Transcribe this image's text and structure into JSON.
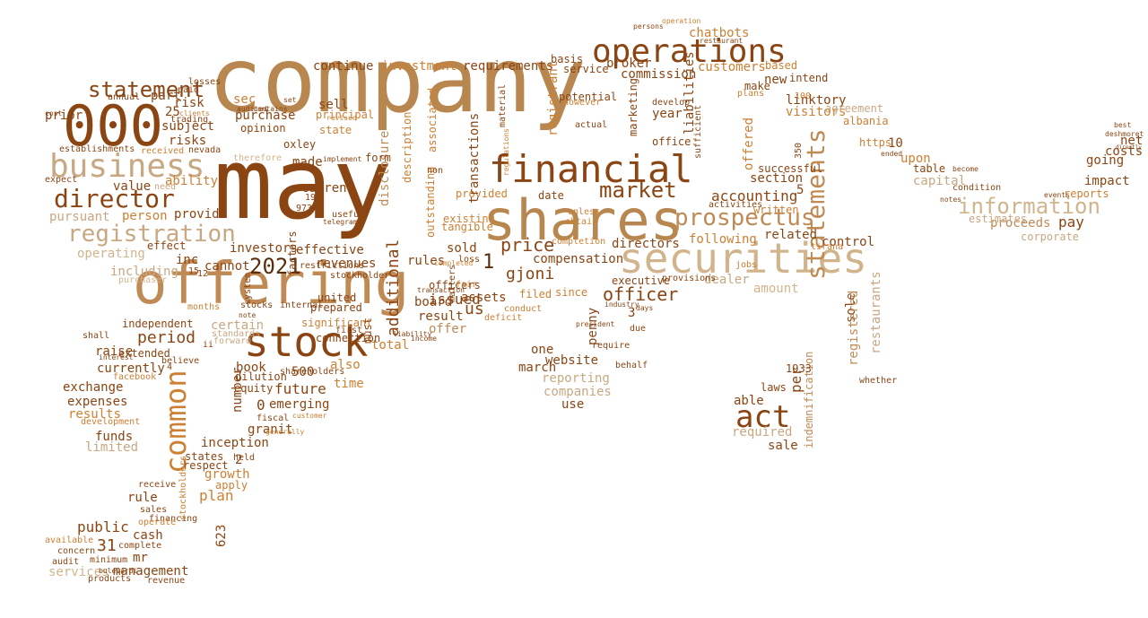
{
  "words": [
    {
      "text": "company",
      "color": "#b8864f"
    },
    {
      "text": "may",
      "color": "#8b4513"
    },
    {
      "text": "offering",
      "color": "#c08a55"
    },
    {
      "text": "shares",
      "color": "#b8864f"
    },
    {
      "text": "securities",
      "color": "#d2b48c"
    },
    {
      "text": "000",
      "color": "#8b4513"
    },
    {
      "text": "stock",
      "color": "#8b4513"
    },
    {
      "text": "business",
      "color": "#c8a882"
    },
    {
      "text": "financial",
      "color": "#8b4513"
    },
    {
      "text": "operations",
      "color": "#8b4513"
    },
    {
      "text": "prospectus",
      "color": "#c08a55"
    },
    {
      "text": "information",
      "color": "#d2b48c"
    },
    {
      "text": "registration",
      "color": "#c8a882"
    },
    {
      "text": "director",
      "color": "#8b4513"
    },
    {
      "text": "statement",
      "color": "#8b4513"
    },
    {
      "text": "market",
      "color": "#8b4513"
    },
    {
      "text": "act",
      "color": "#8b4513"
    },
    {
      "text": "statements",
      "color": "#c08a55"
    },
    {
      "text": "common",
      "color": "#cd7f32"
    },
    {
      "text": "2021",
      "color": "#5a2d0c"
    },
    {
      "text": "period",
      "color": "#8b4513"
    },
    {
      "text": "future",
      "color": "#8b4513"
    },
    {
      "text": "price",
      "color": "#8b4513"
    },
    {
      "text": "gjoni",
      "color": "#8b4513"
    },
    {
      "text": "officer",
      "color": "#8b4513"
    },
    {
      "text": "accounting",
      "color": "#8b4513"
    },
    {
      "text": "chatbots",
      "color": "#cd7f32"
    },
    {
      "text": "broker",
      "color": "#8b4513"
    },
    {
      "text": "commission",
      "color": "#8b4513"
    },
    {
      "text": "customers",
      "color": "#cd7f32"
    },
    {
      "text": "linktory",
      "color": "#8b4513"
    },
    {
      "text": "related",
      "color": "#8b4513"
    },
    {
      "text": "section",
      "color": "#8b4513"
    },
    {
      "text": "following",
      "color": "#cd7f32"
    },
    {
      "text": "capital",
      "color": "#c8a882"
    },
    {
      "text": "going",
      "color": "#8b4513"
    },
    {
      "text": "impact",
      "color": "#8b4513"
    },
    {
      "text": "pay",
      "color": "#8b4513"
    },
    {
      "text": "proceeds",
      "color": "#c08a55"
    },
    {
      "text": "net",
      "color": "#8b4513"
    },
    {
      "text": "costs",
      "color": "#8b4513"
    },
    {
      "text": "upon",
      "color": "#cd7f32"
    },
    {
      "text": "control",
      "color": "#8b4513"
    },
    {
      "text": "amount",
      "color": "#d2b48c"
    },
    {
      "text": "dealer",
      "color": "#c8a882"
    },
    {
      "text": "required",
      "color": "#c8a882"
    },
    {
      "text": "sale",
      "color": "#8b4513"
    },
    {
      "text": "able",
      "color": "#8b4513"
    },
    {
      "text": "per",
      "color": "#8b4513"
    },
    {
      "text": "directors",
      "color": "#8b4513"
    },
    {
      "text": "compensation",
      "color": "#8b4513"
    },
    {
      "text": "completion",
      "color": "#cd7f32"
    },
    {
      "text": "executive",
      "color": "#8b4513"
    },
    {
      "text": "penny",
      "color": "#8b4513"
    },
    {
      "text": "website",
      "color": "#8b4513"
    },
    {
      "text": "reporting",
      "color": "#c8a882"
    },
    {
      "text": "companies",
      "color": "#c8a882"
    },
    {
      "text": "march",
      "color": "#8b4513"
    },
    {
      "text": "one",
      "color": "#8b4513"
    },
    {
      "text": "use",
      "color": "#8b4513"
    },
    {
      "text": "offer",
      "color": "#c08a55"
    },
    {
      "text": "result",
      "color": "#8b4513"
    },
    {
      "text": "total",
      "color": "#cd7f32"
    },
    {
      "text": "board",
      "color": "#8b4513"
    },
    {
      "text": "assets",
      "color": "#8b4513"
    },
    {
      "text": "issued",
      "color": "#8b4513"
    },
    {
      "text": "us",
      "color": "#8b4513"
    },
    {
      "text": "rules",
      "color": "#8b4513"
    },
    {
      "text": "sold",
      "color": "#8b4513"
    },
    {
      "text": "provided",
      "color": "#cd7f32"
    },
    {
      "text": "date",
      "color": "#8b4513"
    },
    {
      "text": "additional",
      "color": "#8b4513"
    },
    {
      "text": "disclosure",
      "color": "#c08a55"
    },
    {
      "text": "revenues",
      "color": "#8b4513"
    },
    {
      "text": "effective",
      "color": "#8b4513"
    },
    {
      "text": "investors",
      "color": "#8b4513"
    },
    {
      "text": "inc",
      "color": "#8b4513"
    },
    {
      "text": "cannot",
      "color": "#8b4513"
    },
    {
      "text": "sell",
      "color": "#8b4513"
    },
    {
      "text": "sec",
      "color": "#cd7f32"
    },
    {
      "text": "purchase",
      "color": "#8b4513"
    },
    {
      "text": "part",
      "color": "#8b4513"
    },
    {
      "text": "risk",
      "color": "#8b4513"
    },
    {
      "text": "subject",
      "color": "#8b4513"
    },
    {
      "text": "risks",
      "color": "#8b4513"
    },
    {
      "text": "ability",
      "color": "#cd7f32"
    },
    {
      "text": "value",
      "color": "#8b4513"
    },
    {
      "text": "pursuant",
      "color": "#c8a882"
    },
    {
      "text": "person",
      "color": "#cd7f32"
    },
    {
      "text": "provide",
      "color": "#8b4513"
    },
    {
      "text": "operating",
      "color": "#d2b48c"
    },
    {
      "text": "including",
      "color": "#c8a882"
    },
    {
      "text": "certain",
      "color": "#c8a882"
    },
    {
      "text": "currently",
      "color": "#8b4513"
    },
    {
      "text": "raise",
      "color": "#8b4513"
    },
    {
      "text": "exchange",
      "color": "#8b4513"
    },
    {
      "text": "expenses",
      "color": "#8b4513"
    },
    {
      "text": "results",
      "color": "#cd7f32"
    },
    {
      "text": "funds",
      "color": "#8b4513"
    },
    {
      "text": "limited",
      "color": "#c8a882"
    },
    {
      "text": "inception",
      "color": "#8b4513"
    },
    {
      "text": "growth",
      "color": "#cd7f32"
    },
    {
      "text": "plan",
      "color": "#cd7f32"
    },
    {
      "text": "rule",
      "color": "#8b4513"
    },
    {
      "text": "cash",
      "color": "#8b4513"
    },
    {
      "text": "public",
      "color": "#8b4513"
    },
    {
      "text": "31",
      "color": "#8b4513"
    },
    {
      "text": "mr",
      "color": "#8b4513"
    },
    {
      "text": "services",
      "color": "#d2b48c"
    },
    {
      "text": "management",
      "color": "#8b4513"
    },
    {
      "text": "book",
      "color": "#8b4513"
    },
    {
      "text": "500",
      "color": "#8b4513"
    },
    {
      "text": "time",
      "color": "#cd7f32"
    },
    {
      "text": "also",
      "color": "#cd7f32"
    },
    {
      "text": "emerging",
      "color": "#8b4513"
    },
    {
      "text": "made",
      "color": "#8b4513"
    },
    {
      "text": "current",
      "color": "#8b4513"
    },
    {
      "text": "continue",
      "color": "#8b4513"
    },
    {
      "text": "investment",
      "color": "#cd7f32"
    },
    {
      "text": "requirements",
      "color": "#8b4513"
    },
    {
      "text": "year",
      "color": "#8b4513"
    },
    {
      "text": "new",
      "color": "#8b4513"
    },
    {
      "text": "marketing",
      "color": "#8b4513"
    },
    {
      "text": "liabilities",
      "color": "#8b4513"
    },
    {
      "text": "registrant",
      "color": "#cd7f32"
    },
    {
      "text": "transactions",
      "color": "#8b4513"
    },
    {
      "text": "associated",
      "color": "#cd7f32"
    },
    {
      "text": "outstanding",
      "color": "#cd7f32"
    },
    {
      "text": "must",
      "color": "#8b4513"
    },
    {
      "text": "factors",
      "color": "#8b4513"
    },
    {
      "text": "granit",
      "color": "#8b4513"
    },
    {
      "text": "number",
      "color": "#8b4513"
    },
    {
      "text": "sole",
      "color": "#8b4513"
    },
    {
      "text": "registered",
      "color": "#c08a55"
    },
    {
      "text": "restaurants",
      "color": "#c8a882"
    },
    {
      "text": "offered",
      "color": "#cd7f32"
    },
    {
      "text": "visitors",
      "color": "#cd7f32"
    },
    {
      "text": "based",
      "color": "#cd7f32"
    },
    {
      "text": "make",
      "color": "#8b4513"
    },
    {
      "text": "intend",
      "color": "#8b4513"
    },
    {
      "text": "agreement",
      "color": "#c8a882"
    },
    {
      "text": "albania",
      "color": "#cd7f32"
    },
    {
      "text": "indemnification",
      "color": "#c08a55"
    },
    {
      "text": "successful",
      "color": "#8b4513"
    },
    {
      "text": "written",
      "color": "#cd7f32"
    },
    {
      "text": "laws",
      "color": "#8b4513"
    },
    {
      "text": "1933",
      "color": "#8b4513"
    },
    {
      "text": "table",
      "color": "#8b4513"
    },
    {
      "text": "reports",
      "color": "#cd7f32"
    },
    {
      "text": "estimates",
      "color": "#c8a882"
    },
    {
      "text": "corporate",
      "color": "#c8a882"
    },
    {
      "text": "https",
      "color": "#cd7f32"
    },
    {
      "text": "10",
      "color": "#8b4513"
    },
    {
      "text": "25",
      "color": "#8b4513"
    },
    {
      "text": "2",
      "color": "#8b4513"
    },
    {
      "text": "5",
      "color": "#8b4513"
    },
    {
      "text": "0",
      "color": "#8b4513"
    },
    {
      "text": "1",
      "color": "#5a2d0c"
    },
    {
      "text": "3",
      "color": "#8b4513"
    },
    {
      "text": "623",
      "color": "#8b4513"
    },
    {
      "text": "prior",
      "color": "#8b4513"
    },
    {
      "text": "filed",
      "color": "#cd7f32"
    },
    {
      "text": "since",
      "color": "#cd7f32"
    },
    {
      "text": "existing",
      "color": "#cd7f32"
    },
    {
      "text": "tangible",
      "color": "#cd7f32"
    },
    {
      "text": "form",
      "color": "#8b4513"
    },
    {
      "text": "description",
      "color": "#cd7f32"
    },
    {
      "text": "state",
      "color": "#cd7f32"
    },
    {
      "text": "principal",
      "color": "#cd7f32"
    },
    {
      "text": "opinion",
      "color": "#8b4513"
    },
    {
      "text": "oxley",
      "color": "#8b4513"
    },
    {
      "text": "office",
      "color": "#8b4513"
    },
    {
      "text": "potential",
      "color": "#8b4513"
    },
    {
      "text": "basis",
      "color": "#8b4513"
    },
    {
      "text": "service",
      "color": "#8b4513"
    },
    {
      "text": "restaurant",
      "color": "#8b4513"
    },
    {
      "text": "united",
      "color": "#8b4513"
    },
    {
      "text": "prepared",
      "color": "#8b4513"
    },
    {
      "text": "significant",
      "color": "#cd7f32"
    },
    {
      "text": "connection",
      "color": "#8b4513"
    },
    {
      "text": "shareholders",
      "color": "#8b4513"
    },
    {
      "text": "held",
      "color": "#8b4513"
    },
    {
      "text": "respect",
      "color": "#8b4513"
    },
    {
      "text": "states",
      "color": "#8b4513"
    },
    {
      "text": "apply",
      "color": "#cd7f32"
    },
    {
      "text": "receive",
      "color": "#8b4513"
    },
    {
      "text": "sales",
      "color": "#8b4513"
    },
    {
      "text": "financing",
      "color": "#8b4513"
    },
    {
      "text": "stockholders",
      "color": "#cd7f32"
    },
    {
      "text": "operate",
      "color": "#cd7f32"
    },
    {
      "text": "complete",
      "color": "#8b4513"
    },
    {
      "text": "minimum",
      "color": "#8b4513"
    },
    {
      "text": "concern",
      "color": "#8b4513"
    },
    {
      "text": "available",
      "color": "#cd7f32"
    },
    {
      "text": "audit",
      "color": "#8b4513"
    },
    {
      "text": "products",
      "color": "#8b4513"
    },
    {
      "text": "revenue",
      "color": "#8b4513"
    },
    {
      "text": "development",
      "color": "#cd7f32"
    },
    {
      "text": "extended",
      "color": "#8b4513"
    },
    {
      "text": "believe",
      "color": "#8b4513"
    },
    {
      "text": "independent",
      "color": "#8b4513"
    },
    {
      "text": "shall",
      "color": "#8b4513"
    },
    {
      "text": "facebook",
      "color": "#cd7f32"
    },
    {
      "text": "months",
      "color": "#cd7f32"
    },
    {
      "text": "standards",
      "color": "#c8a882"
    },
    {
      "text": "stocks",
      "color": "#8b4513"
    },
    {
      "text": "internal",
      "color": "#8b4513"
    },
    {
      "text": "stockholder",
      "color": "#8b4513"
    },
    {
      "text": "restrictions",
      "color": "#8b4513"
    },
    {
      "text": "dilution",
      "color": "#8b4513"
    },
    {
      "text": "equity",
      "color": "#8b4513"
    },
    {
      "text": "system",
      "color": "#8b4513"
    },
    {
      "text": "establishments",
      "color": "#8b4513"
    },
    {
      "text": "trading",
      "color": "#8b4513"
    },
    {
      "text": "nevada",
      "color": "#8b4513"
    },
    {
      "text": "clients",
      "color": "#cd7f32"
    },
    {
      "text": "paid",
      "color": "#8b4513"
    },
    {
      "text": "losses",
      "color": "#8b4513"
    },
    {
      "text": "conduct",
      "color": "#cd7f32"
    },
    {
      "text": "officers",
      "color": "#8b4513"
    },
    {
      "text": "require",
      "color": "#8b4513"
    },
    {
      "text": "behalf",
      "color": "#8b4513"
    },
    {
      "text": "due",
      "color": "#8b4513"
    },
    {
      "text": "days",
      "color": "#8b4513"
    },
    {
      "text": "whether",
      "color": "#8b4513"
    },
    {
      "text": "ended",
      "color": "#8b4513"
    },
    {
      "text": "tirana",
      "color": "#cd7f32"
    },
    {
      "text": "jobs",
      "color": "#cd7f32"
    },
    {
      "text": "activities",
      "color": "#8b4513"
    },
    {
      "text": "sufficient",
      "color": "#8b4513"
    },
    {
      "text": "loss",
      "color": "#8b4513"
    },
    {
      "text": "fair",
      "color": "#cd7f32"
    },
    {
      "text": "material",
      "color": "#8b4513"
    },
    {
      "text": "regulations",
      "color": "#cd7f32"
    },
    {
      "text": "therefore",
      "color": "#d2b48c"
    },
    {
      "text": "received",
      "color": "#cd7f32"
    },
    {
      "text": "annual",
      "color": "#8b4513"
    },
    {
      "text": "bulevardi",
      "color": "#8b4513"
    },
    {
      "text": "expect",
      "color": "#8b4513"
    },
    {
      "text": "cost",
      "color": "#8b4513"
    },
    {
      "text": "liability",
      "color": "#8b4513"
    },
    {
      "text": "income",
      "color": "#8b4513"
    },
    {
      "text": "first",
      "color": "#8b4513"
    },
    {
      "text": "telegram",
      "color": "#8b4513"
    },
    {
      "text": "useful",
      "color": "#8b4513"
    },
    {
      "text": "implement",
      "color": "#8b4513"
    },
    {
      "text": "973",
      "color": "#8b4513"
    },
    {
      "text": "19",
      "color": "#8b4513"
    },
    {
      "text": "350",
      "color": "#8b4513"
    },
    {
      "text": "100",
      "color": "#cd7f32"
    },
    {
      "text": "12",
      "color": "#8b4513"
    },
    {
      "text": "15",
      "color": "#8b4513"
    },
    {
      "text": "4",
      "color": "#8b4513"
    },
    {
      "text": "ii",
      "color": "#8b4513"
    },
    {
      "text": "note",
      "color": "#8b4513"
    },
    {
      "text": "audited",
      "color": "#8b4513"
    },
    {
      "text": "contains",
      "color": "#8b4513"
    },
    {
      "text": "set",
      "color": "#8b4513"
    },
    {
      "text": "revised",
      "color": "#cd7f32"
    },
    {
      "text": "non",
      "color": "#8b4513"
    },
    {
      "text": "matters",
      "color": "#8b4513"
    },
    {
      "text": "deficit",
      "color": "#cd7f32"
    },
    {
      "text": "unless",
      "color": "#cd7f32"
    },
    {
      "text": "obtain",
      "color": "#cd7f32"
    },
    {
      "text": "actual",
      "color": "#8b4513"
    },
    {
      "text": "however",
      "color": "#cd7f32"
    },
    {
      "text": "develop",
      "color": "#8b4513"
    },
    {
      "text": "plans",
      "color": "#cd7f32"
    },
    {
      "text": "persons",
      "color": "#8b4513"
    },
    {
      "text": "operation",
      "color": "#cd7f32"
    },
    {
      "text": "best",
      "color": "#8b4513"
    },
    {
      "text": "deshmoret",
      "color": "#8b4513"
    },
    {
      "text": "directly",
      "color": "#8b4513"
    },
    {
      "text": "events",
      "color": "#8b4513"
    },
    {
      "text": "condition",
      "color": "#8b4513"
    },
    {
      "text": "become",
      "color": "#8b4513"
    },
    {
      "text": "notes",
      "color": "#8b4513"
    },
    {
      "text": "provisions",
      "color": "#8b4513"
    },
    {
      "text": "industry",
      "color": "#8b4513"
    },
    {
      "text": "president",
      "color": "#8b4513"
    },
    {
      "text": "customer",
      "color": "#cd7f32"
    },
    {
      "text": "fiscal",
      "color": "#8b4513"
    },
    {
      "text": "generally",
      "color": "#cd7f32"
    },
    {
      "text": "interest",
      "color": "#8b4513"
    },
    {
      "text": "forward",
      "color": "#c8a882"
    },
    {
      "text": "effect",
      "color": "#8b4513"
    },
    {
      "text": "need",
      "color": "#c8a882"
    },
    {
      "text": "purchaser",
      "color": "#d2b48c"
    },
    {
      "text": "transaction",
      "color": "#8b4513"
    },
    {
      "text": "completed",
      "color": "#cd7f32"
    }
  ]
}
